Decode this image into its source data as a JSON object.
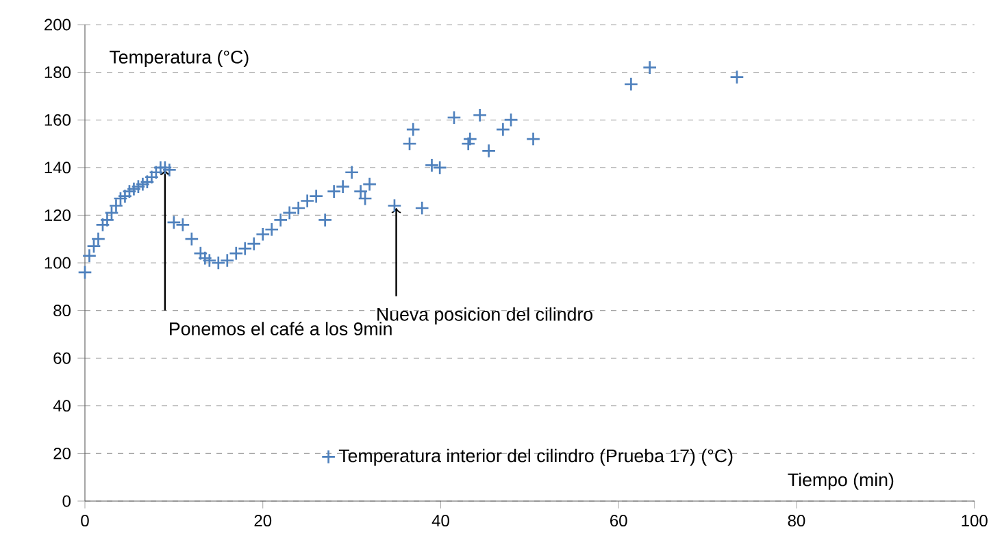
{
  "chart_data": {
    "type": "scatter",
    "xlabel": "Tiempo (min)",
    "ylabel": "Temperatura (°C)",
    "x": [
      0,
      0.5,
      1,
      1.5,
      2,
      2.5,
      3,
      3.5,
      4,
      4.5,
      5,
      5.5,
      6,
      6.5,
      7,
      7.5,
      8,
      8.5,
      9,
      9.5,
      10,
      11,
      12,
      13,
      13.5,
      14,
      15,
      16,
      17,
      18,
      19,
      20,
      21,
      22,
      23,
      24,
      25,
      26,
      27,
      28,
      29,
      30,
      31,
      31.5,
      32,
      34.8,
      37.9,
      36.5,
      36.9,
      39,
      39.9,
      41.5,
      43.1,
      43.3,
      44.4,
      45.4,
      47,
      47.9,
      50.4,
      61.4,
      63.5,
      73.3
    ],
    "series": [
      {
        "name": "Temperatura interior del cilindro (Prueba 17) (°C)",
        "color": "#4f81bd",
        "values": [
          96,
          103,
          107,
          110,
          116,
          118,
          121,
          124,
          127,
          128,
          130,
          131,
          132,
          133,
          134,
          136,
          138,
          140,
          140,
          139,
          117,
          116,
          110,
          104,
          102,
          101,
          100,
          101,
          104,
          106,
          108,
          112,
          114,
          118,
          121,
          123,
          126,
          128,
          118,
          130,
          132,
          138,
          130,
          127,
          133,
          124,
          123,
          150,
          156,
          141,
          140,
          161,
          150,
          152,
          162,
          147,
          156,
          160,
          152,
          175,
          182,
          178
        ]
      }
    ],
    "xlim": [
      0,
      100
    ],
    "xticks": [
      0,
      20,
      40,
      60,
      80,
      100
    ],
    "ylim": [
      0,
      200
    ],
    "yticks": [
      0,
      20,
      40,
      60,
      80,
      100,
      120,
      140,
      160,
      180,
      200
    ],
    "grid": "y",
    "legend": "bottom",
    "marker": "cross",
    "annotations": [
      {
        "text": "Ponemos el café a los 9min",
        "x": 9,
        "y": 140
      },
      {
        "text": "Nueva posicion del cilindro",
        "x": 35,
        "y": 124
      }
    ]
  }
}
